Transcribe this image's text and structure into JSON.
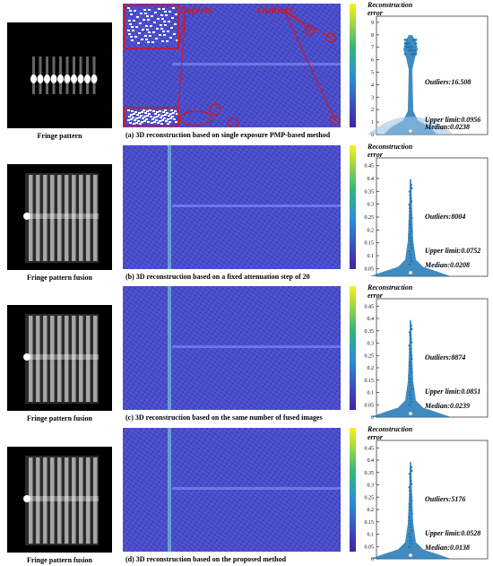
{
  "panels": [
    {
      "image_label": "Fringe pattern",
      "caption": "(a) 3D reconstruction based on single exposure PMP-based method",
      "defect_label": "Defects",
      "outlier_label": "Outliers",
      "violin": {
        "title": "Reconstruction error",
        "ylim": [
          0,
          9.5
        ],
        "yticks": [
          0,
          1,
          2,
          3,
          4,
          5,
          6,
          7,
          8,
          9
        ],
        "outliers": "Outliers:16.508",
        "upper_limit": "Upper limit:0.0956",
        "median": "Median:0.0238"
      }
    },
    {
      "image_label": "Fringe pattern fusion",
      "caption": "(b) 3D reconstruction based on a fixed attenuation step of 20",
      "violin": {
        "title": "Reconstruction error",
        "ylim": [
          0.02,
          0.48
        ],
        "yticks": [
          0.05,
          0.1,
          0.15,
          0.2,
          0.25,
          0.3,
          0.35,
          0.4,
          0.45
        ],
        "outliers": "Outliers:8004",
        "upper_limit": "Upper limit:0.0752",
        "median": "Median:0.0208"
      }
    },
    {
      "image_label": "Fringe pattern fusion",
      "caption": "(c) 3D reconstruction based on the same number of fused images",
      "violin": {
        "title": "Reconstruction error",
        "ylim": [
          0,
          0.48
        ],
        "yticks": [
          0,
          0.05,
          0.1,
          0.15,
          0.2,
          0.25,
          0.3,
          0.35,
          0.4,
          0.45
        ],
        "outliers": "Outliers:8874",
        "upper_limit": "Upper limit:0.0851",
        "median": "Median:0.0239"
      }
    },
    {
      "image_label": "Fringe pattern fusion",
      "caption": "(d) 3D reconstruction based on the proposed method",
      "violin": {
        "title": "Reconstruction error",
        "ylim": [
          0,
          0.48
        ],
        "yticks": [
          0,
          0.05,
          0.1,
          0.15,
          0.2,
          0.25,
          0.3,
          0.35,
          0.4,
          0.45
        ],
        "outliers": "Outliers:5176",
        "upper_limit": "Upper limit:0.0528",
        "median": "Median:0.0138"
      }
    }
  ]
}
